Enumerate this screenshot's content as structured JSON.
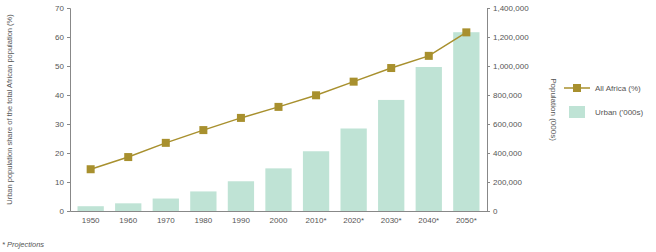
{
  "chart_data": {
    "type": "bar",
    "categories": [
      "1950",
      "1960",
      "1970",
      "1980",
      "1990",
      "2000",
      "2010*",
      "2020*",
      "2030*",
      "2040*",
      "2050*"
    ],
    "series": [
      {
        "name": "All Africa (%)",
        "type": "line",
        "color": "#a8902e",
        "marker": "square",
        "values": [
          14.4,
          18.6,
          23.5,
          27.9,
          32.1,
          35.9,
          39.9,
          44.6,
          49.3,
          53.5,
          61.6
        ]
      },
      {
        "name": "Urban ('000s)",
        "type": "bar",
        "axis": "y2",
        "color": "#bfe3d5",
        "values": [
          33000,
          53000,
          86000,
          135000,
          205000,
          294000,
          412000,
          569000,
          766000,
          993000,
          1233000
        ]
      }
    ],
    "ylabel": "Urban population share of the total African population (%)",
    "y2label": "Population (000s)",
    "ylim": [
      0,
      70
    ],
    "yticks": [
      0,
      10,
      20,
      30,
      40,
      50,
      60,
      70
    ],
    "y2lim": [
      0,
      1400000
    ],
    "y2ticks": [
      0,
      {
        "value": 200000,
        "label": "200,000"
      },
      {
        "value": 400000,
        "label": "400,000"
      },
      {
        "value": 600000,
        "label": "600,000"
      },
      {
        "value": 800000,
        "label": "800,000"
      },
      {
        "value": 1000000,
        "label": "1,000,000"
      },
      {
        "value": 1200000,
        "label": "1,200,000"
      },
      {
        "value": 1400000,
        "label": "1,400,000"
      }
    ],
    "legend": "right",
    "annotations": [
      "* Projections"
    ]
  }
}
